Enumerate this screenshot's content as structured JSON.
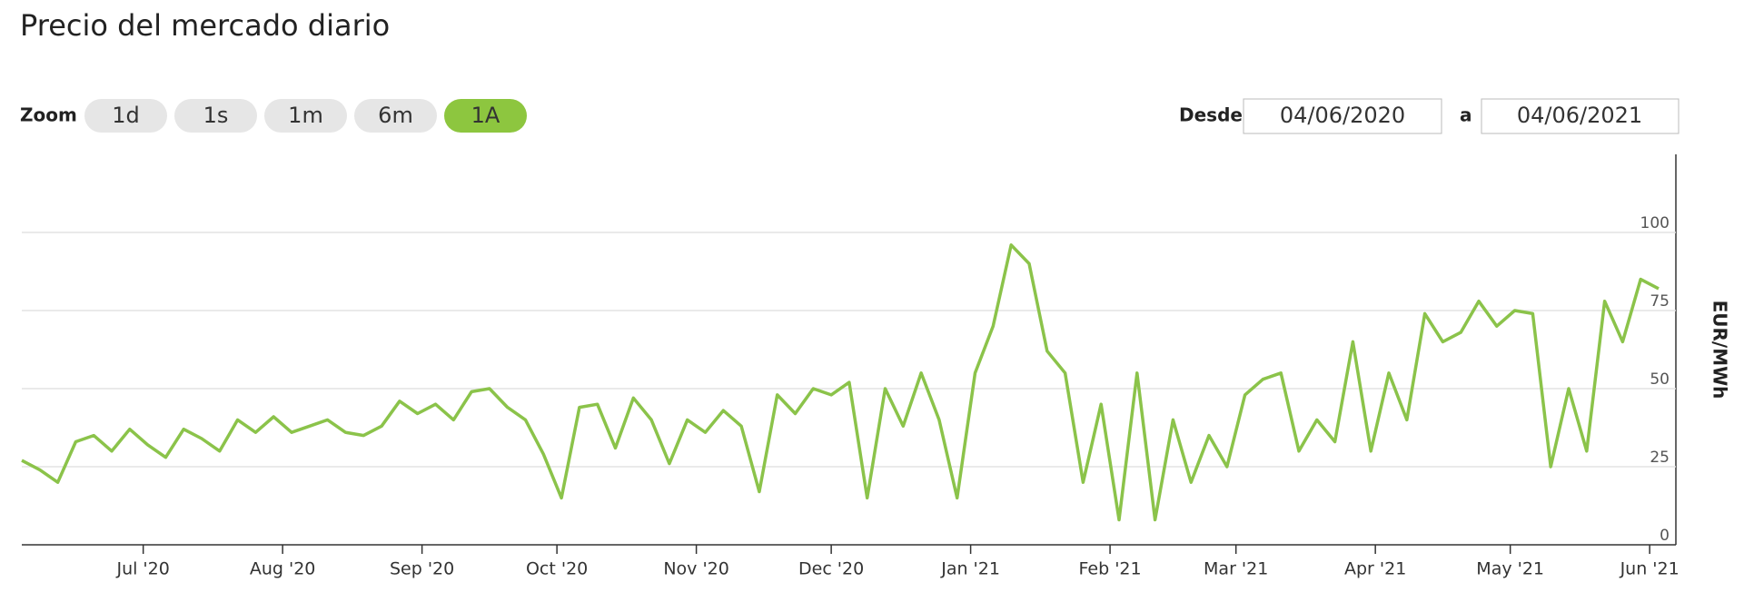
{
  "header": {
    "title": "Precio del mercado diario"
  },
  "controls": {
    "zoom_label": "Zoom",
    "zoom_buttons": [
      "1d",
      "1s",
      "1m",
      "6m",
      "1A"
    ],
    "active_button": 4,
    "from_label": "Desde",
    "from_date": "04/06/2020",
    "to_label": "a",
    "to_date": "04/06/2021"
  },
  "chart_data": {
    "type": "line",
    "y_label": "EUR/MWh",
    "color": "#8bc34a",
    "grid": true,
    "x": [
      0,
      4,
      8,
      12,
      16,
      20,
      24,
      28,
      32,
      36,
      40,
      44,
      48,
      52,
      56,
      60,
      64,
      68,
      72,
      76,
      80,
      84,
      88,
      92,
      96,
      100,
      104,
      108,
      112,
      116,
      120,
      124,
      128,
      132,
      136,
      140,
      144,
      148,
      152,
      156,
      160,
      164,
      168,
      172,
      176,
      180,
      184,
      188,
      192,
      196,
      200,
      204,
      208,
      212,
      216,
      220,
      224,
      228,
      232,
      236,
      240,
      244,
      248,
      252,
      256,
      260,
      264,
      268,
      272,
      276,
      280,
      284,
      288,
      292,
      296,
      300,
      304,
      308,
      312,
      316,
      320,
      324,
      328,
      332,
      336,
      340,
      344,
      348,
      352,
      356,
      360,
      364
    ],
    "series": [
      {
        "name": "EUR/MWh",
        "color": "#8bc34a",
        "values": [
          27,
          24,
          20,
          33,
          35,
          30,
          37,
          32,
          28,
          37,
          34,
          30,
          40,
          36,
          41,
          36,
          38,
          40,
          36,
          35,
          38,
          46,
          42,
          45,
          40,
          49,
          50,
          44,
          40,
          29,
          15,
          44,
          45,
          31,
          47,
          40,
          26,
          40,
          36,
          43,
          38,
          17,
          48,
          42,
          50,
          48,
          52,
          15,
          50,
          38,
          55,
          40,
          15,
          55,
          70,
          96,
          90,
          62,
          55,
          20,
          45,
          8,
          55,
          8,
          40,
          20,
          35,
          25,
          48,
          53,
          55,
          30,
          40,
          33,
          65,
          30,
          55,
          40,
          74,
          65,
          68,
          78,
          70,
          75,
          74,
          25,
          50,
          30,
          78,
          65,
          85,
          82
        ]
      }
    ],
    "xlim": [
      0,
      365
    ],
    "xticks": [
      {
        "value": 27,
        "label": "Jul '20"
      },
      {
        "value": 58,
        "label": "Aug '20"
      },
      {
        "value": 89,
        "label": "Sep '20"
      },
      {
        "value": 119,
        "label": "Oct '20"
      },
      {
        "value": 150,
        "label": "Nov '20"
      },
      {
        "value": 180,
        "label": "Dec '20"
      },
      {
        "value": 211,
        "label": "Jan '21"
      },
      {
        "value": 242,
        "label": "Feb '21"
      },
      {
        "value": 270,
        "label": "Mar '21"
      },
      {
        "value": 301,
        "label": "Apr '21"
      },
      {
        "value": 331,
        "label": "May '21"
      },
      {
        "value": 362,
        "label": "Jun '21"
      }
    ],
    "ylim": [
      0,
      125
    ],
    "yticks": [
      0,
      25,
      50,
      75,
      100
    ]
  }
}
